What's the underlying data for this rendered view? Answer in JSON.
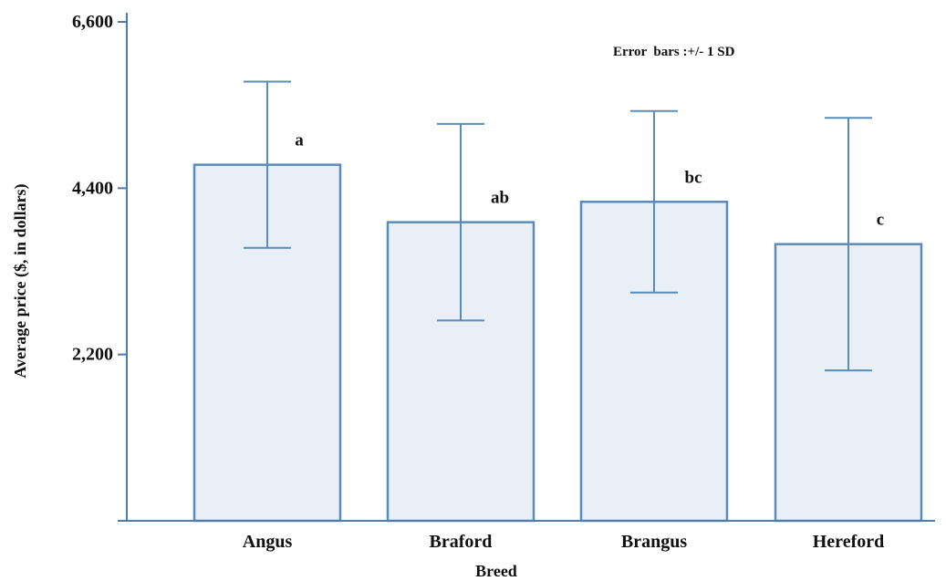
{
  "chart_data": {
    "type": "bar",
    "categories": [
      "Angus",
      "Braford",
      "Brangus",
      "Hereford"
    ],
    "values": [
      4710,
      3950,
      4220,
      3660
    ],
    "error_sd": [
      1100,
      1300,
      1200,
      1670
    ],
    "significance_letters": [
      "a",
      "ab",
      "bc",
      "c"
    ],
    "xlabel": "Breed",
    "ylabel": "Average price ($, in dollars)",
    "ylim": [
      0,
      6600
    ],
    "yticks": [
      2200,
      4400,
      6600
    ],
    "ytick_labels": [
      "2,200",
      "4,400",
      "6,600"
    ],
    "annotation": "Error  bars :+/- 1 SD",
    "grid": false,
    "colors": {
      "bar_fill": "#e9eff7",
      "bar_stroke": "#5b8bb8",
      "axis": "#4f7ba8"
    }
  }
}
